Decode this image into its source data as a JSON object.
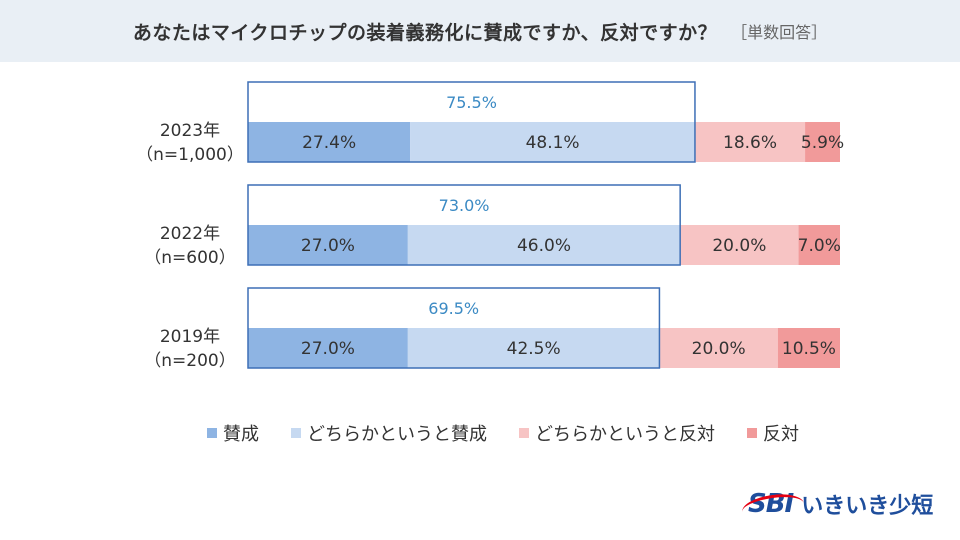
{
  "title": "あなたはマイクロチップの装着義務化に賛成ですか、反対ですか？",
  "title_note": "［単数回答］",
  "logo": {
    "mark": "SBI",
    "text": "いきいき少短"
  },
  "colors": {
    "favor": "#8eb4e3",
    "rather_favor": "#c6d9f1",
    "rather_oppose": "#f7c4c4",
    "oppose": "#f19a9a",
    "outline": "#3d6fb6",
    "total_text": "#3b8ac4"
  },
  "chart_data": {
    "type": "bar",
    "orientation": "horizontal",
    "stacked": true,
    "percent_scale": [
      0,
      100
    ],
    "categories": [
      [
        "2023年",
        "（n=1,000）"
      ],
      [
        "2022年",
        "（n=600）"
      ],
      [
        "2019年",
        "（n=200）"
      ]
    ],
    "series": [
      {
        "name": "賛成",
        "values": [
          27.4,
          27.0,
          27.0
        ],
        "labels": [
          "27.4%",
          "27.0%",
          "27.0%"
        ]
      },
      {
        "name": "どちらかというと賛成",
        "values": [
          48.1,
          46.0,
          42.5
        ],
        "labels": [
          "48.1%",
          "46.0%",
          "42.5%"
        ]
      },
      {
        "name": "どちらかというと反対",
        "values": [
          18.6,
          20.0,
          20.0
        ],
        "labels": [
          "18.6%",
          "20.0%",
          "20.0%"
        ]
      },
      {
        "name": "反対",
        "values": [
          5.9,
          7.0,
          10.5
        ],
        "labels": [
          "5.9%",
          "7.0%",
          "10.5%"
        ]
      }
    ],
    "totals": {
      "values": [
        75.5,
        73.0,
        69.5
      ],
      "labels": [
        "75.5%",
        "73.0%",
        "69.5%"
      ]
    },
    "legend_position": "bottom"
  }
}
